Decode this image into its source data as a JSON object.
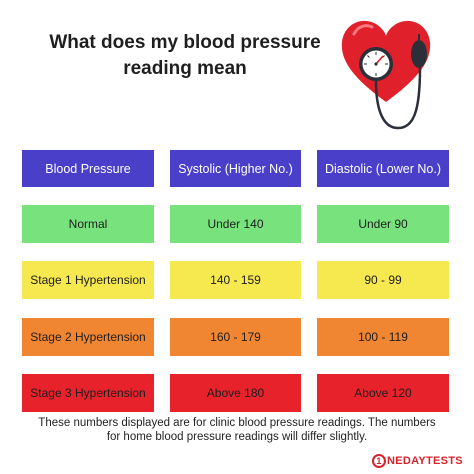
{
  "title": {
    "line1": "What does my blood pressure",
    "line2": "reading mean"
  },
  "illustration": {
    "icon": "heart-blood-pressure-gauge-icon"
  },
  "table": {
    "headers": [
      "Blood Pressure",
      "Systolic (Higher No.)",
      "Diastolic (Lower No.)"
    ],
    "rows": [
      {
        "category": "Normal",
        "systolic": "Under 140",
        "diastolic": "Under 90",
        "color": "#78e37d"
      },
      {
        "category": "Stage 1 Hypertension",
        "systolic": "140 - 159",
        "diastolic": "90 - 99",
        "color": "#f6e84f"
      },
      {
        "category": "Stage 2 Hypertension",
        "systolic": "160 - 179",
        "diastolic": "100 - 119",
        "color": "#f08632"
      },
      {
        "category": "Stage 3 Hypertension",
        "systolic": "Above 180",
        "diastolic": "Above 120",
        "color": "#e8222b"
      }
    ],
    "header_color": "#4a3fc8"
  },
  "footnote": {
    "line1": "These numbers displayed are for clinic blood pressure readings. The numbers",
    "line2": "for home blood pressure readings will differ slightly."
  },
  "logo": {
    "text": "NEDAYTESTS",
    "mark": "1"
  }
}
